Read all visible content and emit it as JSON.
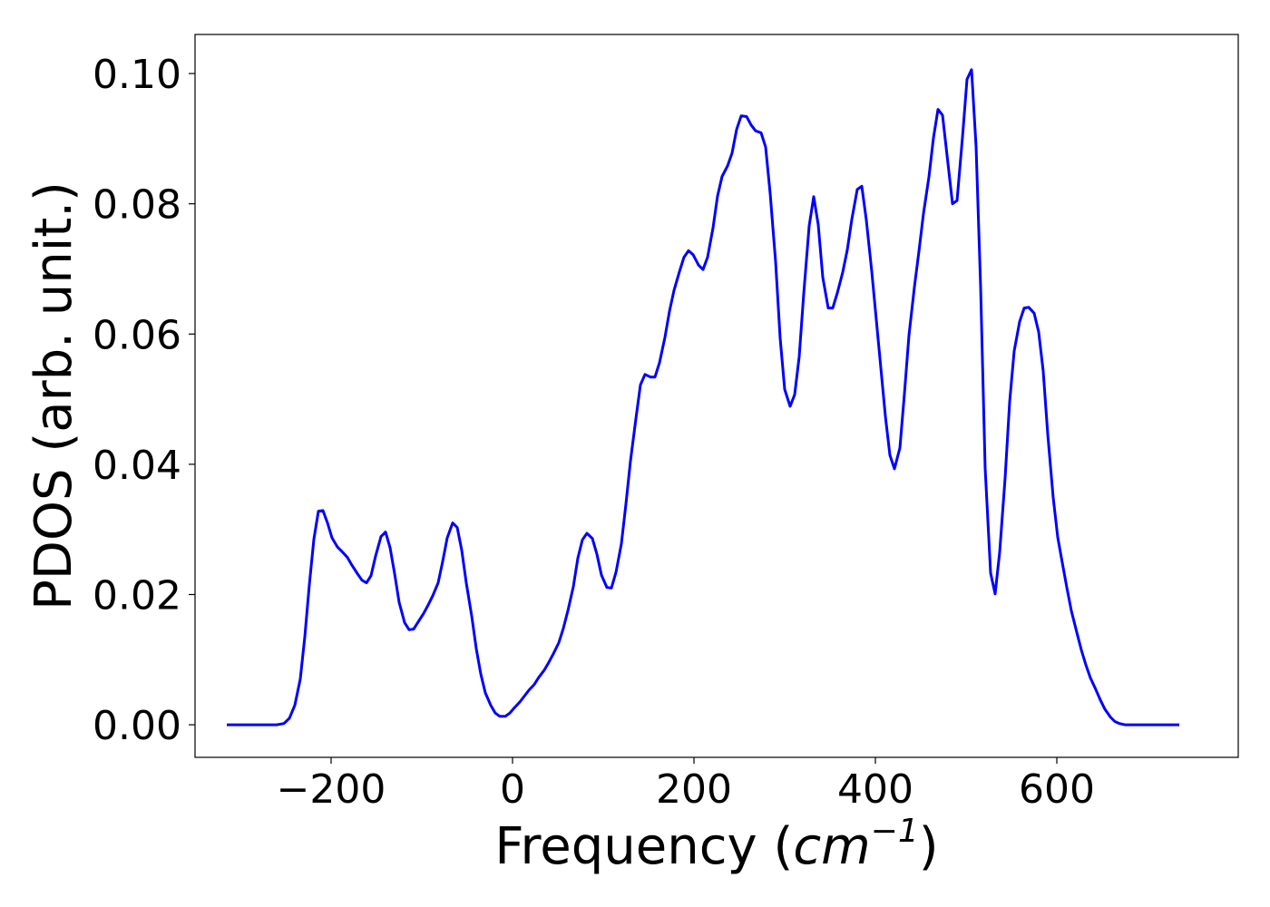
{
  "chart_data": {
    "type": "line",
    "title": "",
    "xlabel": "Frequency (",
    "xlabel_math": "cm",
    "xlabel_sup": "−1",
    "xlabel_close": ")",
    "ylabel": "PDOS (arb. unit.)",
    "xlim": [
      -350,
      800
    ],
    "ylim": [
      -0.005,
      0.106
    ],
    "xticks": [
      -200,
      0,
      200,
      400,
      600
    ],
    "xtick_labels": [
      "−200",
      "0",
      "200",
      "400",
      "600"
    ],
    "yticks": [
      0.0,
      0.02,
      0.04,
      0.06,
      0.08,
      0.1
    ],
    "ytick_labels": [
      "0.00",
      "0.02",
      "0.04",
      "0.06",
      "0.08",
      "0.10"
    ],
    "grid": false,
    "line_color": "#0000ff",
    "series": [
      {
        "x": [
          -315,
          -260,
          -252,
          -246,
          -240,
          -234,
          -229,
          -224,
          -219,
          -214,
          -209,
          -204,
          -199,
          -193,
          -188,
          -182,
          -177,
          -171,
          -166,
          -161,
          -156,
          -151,
          -145,
          -140,
          -135,
          -130,
          -125,
          -119,
          -114,
          -109,
          -104,
          -98,
          -93,
          -88,
          -82,
          -77,
          -72,
          -66,
          -61,
          -56,
          -51,
          -45,
          -40,
          -35,
          -30,
          -24,
          -19,
          -14,
          -8,
          -3,
          2,
          8,
          13,
          18,
          24,
          29,
          35,
          40,
          45,
          51,
          56,
          61,
          67,
          72,
          77,
          82,
          88,
          93,
          98,
          104,
          109,
          114,
          120,
          125,
          130,
          136,
          141,
          146,
          152,
          157,
          162,
          168,
          173,
          178,
          184,
          189,
          194,
          199,
          205,
          210,
          215,
          221,
          226,
          231,
          237,
          242,
          247,
          252,
          258,
          263,
          268,
          274,
          279,
          284,
          290,
          295,
          300,
          306,
          311,
          316,
          321,
          327,
          332,
          337,
          342,
          348,
          353,
          358,
          364,
          369,
          374,
          380,
          385,
          390,
          396,
          401,
          406,
          411,
          416,
          421,
          427,
          432,
          437,
          443,
          448,
          453,
          459,
          464,
          469,
          474,
          480,
          485,
          490,
          496,
          501,
          506,
          511,
          516,
          521,
          527,
          532,
          537,
          543,
          548,
          553,
          559,
          564,
          569,
          575,
          580,
          585,
          590,
          596,
          601,
          606,
          611,
          616,
          622,
          627,
          632,
          637,
          643,
          648,
          653,
          659,
          664,
          669,
          675,
          680,
          735
        ],
        "y": [
          0.0,
          0.0,
          0.0002,
          0.001,
          0.003,
          0.007,
          0.0135,
          0.0215,
          0.0285,
          0.0328,
          0.0329,
          0.031,
          0.0287,
          0.0273,
          0.0266,
          0.0257,
          0.0245,
          0.0232,
          0.0222,
          0.0218,
          0.0229,
          0.0259,
          0.0289,
          0.0296,
          0.0272,
          0.0232,
          0.0188,
          0.0157,
          0.0146,
          0.0147,
          0.0158,
          0.0171,
          0.0184,
          0.0198,
          0.0218,
          0.0251,
          0.0287,
          0.031,
          0.0303,
          0.0268,
          0.0218,
          0.0167,
          0.0117,
          0.0078,
          0.0049,
          0.003,
          0.0018,
          0.0013,
          0.0013,
          0.0018,
          0.0026,
          0.0035,
          0.0044,
          0.0053,
          0.0062,
          0.0073,
          0.0084,
          0.0096,
          0.0109,
          0.0126,
          0.0148,
          0.0175,
          0.0212,
          0.0256,
          0.0284,
          0.0294,
          0.0286,
          0.0262,
          0.023,
          0.0211,
          0.021,
          0.0234,
          0.0278,
          0.0339,
          0.0405,
          0.047,
          0.0522,
          0.0538,
          0.0534,
          0.0534,
          0.0556,
          0.0595,
          0.0635,
          0.0667,
          0.0696,
          0.0718,
          0.0728,
          0.0722,
          0.0706,
          0.0699,
          0.0718,
          0.0763,
          0.0812,
          0.0842,
          0.0858,
          0.0878,
          0.0914,
          0.0935,
          0.0934,
          0.0921,
          0.0912,
          0.0909,
          0.0887,
          0.0816,
          0.0711,
          0.0594,
          0.0515,
          0.0489,
          0.0507,
          0.0565,
          0.0662,
          0.0766,
          0.0811,
          0.0768,
          0.0687,
          0.064,
          0.064,
          0.0663,
          0.0695,
          0.0729,
          0.0776,
          0.0822,
          0.0827,
          0.0775,
          0.0696,
          0.0622,
          0.0548,
          0.0474,
          0.0414,
          0.0393,
          0.0425,
          0.0508,
          0.0598,
          0.0672,
          0.0727,
          0.0785,
          0.0841,
          0.0901,
          0.0945,
          0.0936,
          0.0862,
          0.08,
          0.0805,
          0.0902,
          0.0991,
          0.1006,
          0.0888,
          0.0672,
          0.0394,
          0.0233,
          0.0201,
          0.0265,
          0.0379,
          0.0496,
          0.0574,
          0.0619,
          0.064,
          0.0641,
          0.0632,
          0.0603,
          0.0543,
          0.0446,
          0.0349,
          0.0288,
          0.0249,
          0.0211,
          0.0175,
          0.0142,
          0.0115,
          0.0092,
          0.0072,
          0.0054,
          0.0038,
          0.0024,
          0.0012,
          0.0005,
          0.0002,
          0.0,
          0.0,
          0.0
        ]
      }
    ]
  }
}
